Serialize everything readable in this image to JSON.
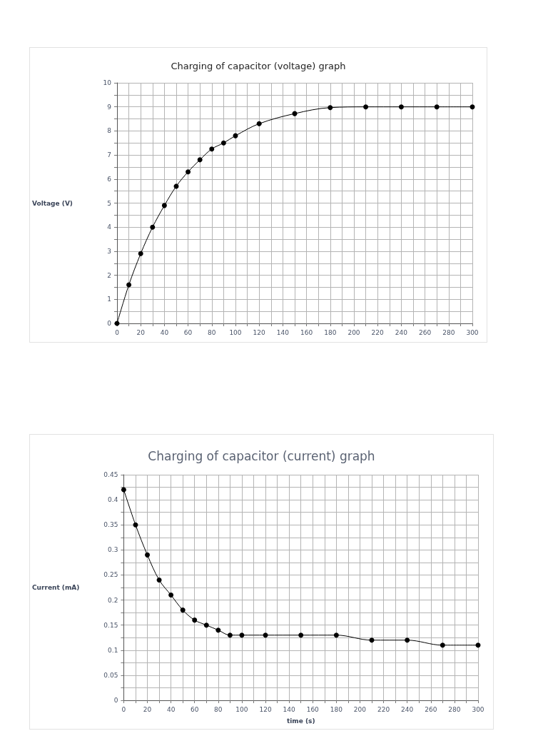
{
  "chart_data": [
    {
      "type": "line",
      "title": "Charging of capacitor (voltage) graph",
      "ylabel": "Voltage (V)",
      "x": [
        0,
        10,
        20,
        30,
        40,
        50,
        60,
        70,
        80,
        90,
        100,
        120,
        150,
        180,
        210,
        240,
        270,
        300
      ],
      "values": [
        0,
        1.6,
        2.9,
        4.0,
        4.9,
        5.7,
        6.3,
        6.8,
        7.25,
        7.5,
        7.8,
        8.3,
        8.72,
        8.97,
        9,
        9,
        9,
        9
      ],
      "color": "#000000",
      "marker": "circle",
      "line_style": "solid",
      "grid": true,
      "xlim": [
        0,
        300
      ],
      "xticks": [
        0,
        {
          "value": 10,
          "label": null
        },
        20,
        {
          "value": 30,
          "label": null
        },
        40,
        {
          "value": 50,
          "label": null
        },
        60,
        {
          "value": 70,
          "label": null
        },
        80,
        {
          "value": 90,
          "label": null
        },
        100,
        {
          "value": 110,
          "label": null
        },
        120,
        {
          "value": 130,
          "label": null
        },
        140,
        {
          "value": 150,
          "label": null
        },
        160,
        {
          "value": 170,
          "label": null
        },
        180,
        {
          "value": 190,
          "label": null
        },
        200,
        {
          "value": 210,
          "label": null
        },
        220,
        {
          "value": 230,
          "label": null
        },
        240,
        {
          "value": 250,
          "label": null
        },
        260,
        {
          "value": 270,
          "label": null
        },
        280,
        {
          "value": 290,
          "label": null
        },
        300
      ],
      "ylim": [
        0,
        10
      ],
      "yticks": [
        0,
        {
          "value": 0.5,
          "label": null
        },
        1,
        {
          "value": 1.5,
          "label": null
        },
        2,
        {
          "value": 2.5,
          "label": null
        },
        3,
        {
          "value": 3.5,
          "label": null
        },
        4,
        {
          "value": 4.5,
          "label": null
        },
        5,
        {
          "value": 5.5,
          "label": null
        },
        6,
        {
          "value": 6.5,
          "label": null
        },
        7,
        {
          "value": 7.5,
          "label": null
        },
        8,
        {
          "value": 8.5,
          "label": null
        },
        9,
        {
          "value": 9.5,
          "label": null
        },
        10
      ]
    },
    {
      "type": "line",
      "title": "Charging of capacitor (current) graph",
      "xlabel": "time (s)",
      "ylabel": "Current (mA)",
      "x": [
        0,
        10,
        20,
        30,
        40,
        50,
        60,
        70,
        80,
        90,
        100,
        120,
        150,
        180,
        210,
        240,
        270,
        300
      ],
      "values": [
        0.42,
        0.35,
        0.29,
        0.24,
        0.21,
        0.18,
        0.16,
        0.15,
        0.14,
        0.13,
        0.13,
        0.13,
        0.13,
        0.13,
        0.12,
        0.12,
        0.11,
        0.11
      ],
      "color": "#000000",
      "marker": "circle",
      "line_style": "solid",
      "grid": true,
      "xlim": [
        0,
        300
      ],
      "xticks": [
        0,
        {
          "value": 10,
          "label": null
        },
        20,
        {
          "value": 30,
          "label": null
        },
        40,
        {
          "value": 50,
          "label": null
        },
        60,
        {
          "value": 70,
          "label": null
        },
        80,
        {
          "value": 90,
          "label": null
        },
        100,
        {
          "value": 110,
          "label": null
        },
        120,
        {
          "value": 130,
          "label": null
        },
        140,
        {
          "value": 150,
          "label": null
        },
        160,
        {
          "value": 170,
          "label": null
        },
        180,
        {
          "value": 190,
          "label": null
        },
        200,
        {
          "value": 210,
          "label": null
        },
        220,
        {
          "value": 230,
          "label": null
        },
        240,
        {
          "value": 250,
          "label": null
        },
        260,
        {
          "value": 270,
          "label": null
        },
        280,
        {
          "value": 290,
          "label": null
        },
        300
      ],
      "ylim": [
        0,
        0.45
      ],
      "yticks": [
        0,
        {
          "value": 0.025,
          "label": null
        },
        0.05,
        {
          "value": 0.075,
          "label": null
        },
        0.1,
        {
          "value": 0.125,
          "label": null
        },
        0.15,
        {
          "value": 0.175,
          "label": null
        },
        0.2,
        {
          "value": 0.225,
          "label": null
        },
        0.25,
        {
          "value": 0.275,
          "label": null
        },
        0.3,
        {
          "value": 0.325,
          "label": null
        },
        0.35,
        {
          "value": 0.375,
          "label": null
        },
        0.4,
        {
          "value": 0.425,
          "label": null
        },
        0.45
      ]
    }
  ]
}
